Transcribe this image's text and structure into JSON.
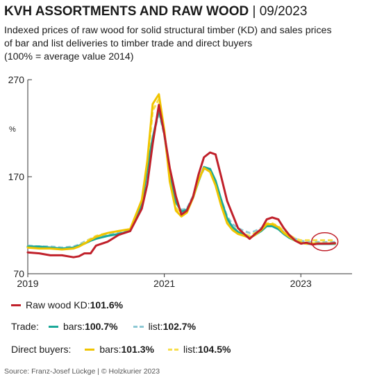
{
  "title": {
    "main": "KVH ASSORTMENTS AND RAW WOOD",
    "separator": " | ",
    "date": "09/2023"
  },
  "subtitle": {
    "line1": "Indexed prices of raw wood for solid structural timber (KD) and sales prices",
    "line2": "of bar and list deliveries to timber trade and direct buyers",
    "line3": "(100% = average value 2014)"
  },
  "legend": {
    "raw": {
      "label": "Raw wood KD: ",
      "value": "101.6%"
    },
    "trade": {
      "label": "Trade:",
      "bars_label": "bars: ",
      "bars_value": "100.7%",
      "list_label": "list: ",
      "list_value": "102.7%"
    },
    "direct": {
      "label": "Direct buyers:",
      "bars_label": "bars: ",
      "bars_value": "101.3%",
      "list_label": "list: ",
      "list_value": "104.5%"
    }
  },
  "source": "Source: Franz-Josef Lückge | © Holzkurier 2023",
  "chart_data": {
    "type": "line",
    "ylabel": "%",
    "ylim": [
      70,
      270
    ],
    "yticks": [
      70,
      170,
      270
    ],
    "xlim": [
      2019,
      2023.75
    ],
    "xticks": [
      {
        "value": 2019,
        "label": "2019"
      },
      {
        "value": 2021,
        "label": "2021"
      },
      {
        "value": 2023,
        "label": "2023"
      }
    ],
    "grid": false,
    "highlight_circle": {
      "x": 2023.35,
      "y": 103
    },
    "series": [
      {
        "name": "Raw wood KD",
        "color": "#c0202a",
        "style": "solid",
        "x": [
          2019.0,
          2019.17,
          2019.33,
          2019.5,
          2019.67,
          2019.75,
          2019.83,
          2019.92,
          2020.0,
          2020.17,
          2020.33,
          2020.5,
          2020.67,
          2020.75,
          2020.83,
          2020.92,
          2021.0,
          2021.08,
          2021.17,
          2021.25,
          2021.33,
          2021.42,
          2021.5,
          2021.58,
          2021.67,
          2021.75,
          2021.83,
          2021.92,
          2022.0,
          2022.08,
          2022.17,
          2022.25,
          2022.33,
          2022.42,
          2022.5,
          2022.58,
          2022.67,
          2022.75,
          2022.83,
          2022.92,
          2023.0,
          2023.08,
          2023.17,
          2023.25,
          2023.33,
          2023.42,
          2023.5
        ],
        "y": [
          92,
          91,
          89,
          89,
          87,
          88,
          91,
          91,
          99,
          103,
          110,
          114,
          137,
          162,
          204,
          244,
          214,
          179,
          150,
          131,
          135,
          149,
          172,
          190,
          195,
          193,
          171,
          145,
          131,
          117,
          111,
          106,
          111,
          116,
          126,
          128,
          126,
          117,
          110,
          104,
          101,
          102,
          100,
          101,
          101,
          101,
          101.6
        ]
      },
      {
        "name": "Trade bars",
        "color": "#1aa898",
        "style": "solid",
        "x": [
          2019.0,
          2019.17,
          2019.33,
          2019.5,
          2019.67,
          2019.75,
          2019.83,
          2019.92,
          2020.0,
          2020.17,
          2020.33,
          2020.5,
          2020.67,
          2020.75,
          2020.83,
          2020.92,
          2021.0,
          2021.08,
          2021.17,
          2021.25,
          2021.33,
          2021.42,
          2021.5,
          2021.58,
          2021.67,
          2021.75,
          2021.83,
          2021.92,
          2022.0,
          2022.08,
          2022.17,
          2022.25,
          2022.33,
          2022.42,
          2022.5,
          2022.58,
          2022.67,
          2022.75,
          2022.83,
          2022.92,
          2023.0,
          2023.08,
          2023.17,
          2023.25,
          2023.33,
          2023.42,
          2023.5
        ],
        "y": [
          98,
          98,
          97,
          96,
          97,
          99,
          101,
          104,
          106,
          109,
          111,
          114,
          141,
          178,
          210,
          239,
          215,
          173,
          144,
          134,
          136,
          148,
          165,
          180,
          178,
          166,
          147,
          127,
          118,
          113,
          110,
          107,
          110,
          114,
          119,
          119,
          116,
          111,
          107,
          104,
          102,
          101,
          100.7,
          100.7,
          100.7,
          100.7,
          100.7
        ]
      },
      {
        "name": "Trade list",
        "color": "#8cc8d4",
        "style": "dash",
        "x": [
          2019.0,
          2019.17,
          2019.33,
          2019.5,
          2019.67,
          2019.75,
          2019.83,
          2019.92,
          2020.0,
          2020.17,
          2020.33,
          2020.5,
          2020.67,
          2020.75,
          2020.83,
          2020.92,
          2021.0,
          2021.08,
          2021.17,
          2021.25,
          2021.33,
          2021.42,
          2021.5,
          2021.58,
          2021.67,
          2021.75,
          2021.83,
          2021.92,
          2022.0,
          2022.08,
          2022.17,
          2022.25,
          2022.33,
          2022.42,
          2022.5,
          2022.58,
          2022.67,
          2022.75,
          2022.83,
          2022.92,
          2023.0,
          2023.08,
          2023.17,
          2023.25,
          2023.33,
          2023.42,
          2023.5
        ],
        "y": [
          99,
          98,
          98,
          97,
          98,
          100,
          103,
          106,
          108,
          110,
          112,
          115,
          142,
          176,
          208,
          237,
          213,
          172,
          145,
          136,
          137,
          150,
          166,
          178,
          176,
          164,
          147,
          129,
          121,
          117,
          114,
          112,
          114,
          117,
          121,
          121,
          118,
          113,
          110,
          106,
          104,
          103,
          102.7,
          102.7,
          102.7,
          102.7,
          102.7
        ]
      },
      {
        "name": "Direct buyers bars",
        "color": "#f0c400",
        "style": "solid",
        "x": [
          2019.0,
          2019.17,
          2019.33,
          2019.5,
          2019.67,
          2019.75,
          2019.83,
          2019.92,
          2020.0,
          2020.17,
          2020.33,
          2020.5,
          2020.67,
          2020.75,
          2020.83,
          2020.92,
          2021.0,
          2021.08,
          2021.17,
          2021.25,
          2021.33,
          2021.42,
          2021.5,
          2021.58,
          2021.67,
          2021.75,
          2021.83,
          2021.92,
          2022.0,
          2022.08,
          2022.17,
          2022.25,
          2022.33,
          2022.42,
          2022.5,
          2022.58,
          2022.67,
          2022.75,
          2022.83,
          2022.92,
          2023.0,
          2023.08,
          2023.17,
          2023.25,
          2023.33,
          2023.42,
          2023.5
        ],
        "y": [
          97,
          96,
          96,
          95,
          96,
          98,
          101,
          105,
          108,
          112,
          114,
          116,
          146,
          186,
          245,
          255,
          218,
          165,
          135,
          129,
          133,
          148,
          166,
          179,
          175,
          161,
          141,
          122,
          115,
          111,
          109,
          107,
          110,
          115,
          121,
          121,
          118,
          112,
          108,
          104,
          102,
          101,
          101.3,
          101.3,
          101.3,
          101.3,
          101.3
        ]
      },
      {
        "name": "Direct buyers list",
        "color": "#f7de4a",
        "style": "dash",
        "x": [
          2019.0,
          2019.17,
          2019.33,
          2019.5,
          2019.67,
          2019.75,
          2019.83,
          2019.92,
          2020.0,
          2020.17,
          2020.33,
          2020.5,
          2020.67,
          2020.75,
          2020.83,
          2020.92,
          2021.0,
          2021.08,
          2021.17,
          2021.25,
          2021.33,
          2021.42,
          2021.5,
          2021.58,
          2021.67,
          2021.75,
          2021.83,
          2021.92,
          2022.0,
          2022.08,
          2022.17,
          2022.25,
          2022.33,
          2022.42,
          2022.5,
          2022.58,
          2022.67,
          2022.75,
          2022.83,
          2022.92,
          2023.0,
          2023.08,
          2023.17,
          2023.25,
          2023.33,
          2023.42,
          2023.5
        ],
        "y": [
          98,
          97,
          97,
          96,
          97,
          99,
          102,
          106,
          109,
          112,
          114,
          116,
          144,
          182,
          238,
          250,
          215,
          168,
          138,
          131,
          134,
          149,
          167,
          179,
          176,
          163,
          144,
          125,
          118,
          114,
          111,
          109,
          112,
          116,
          122,
          122,
          119,
          114,
          110,
          106,
          104.5,
          104.5,
          104.5,
          104.5,
          104.5,
          104.5,
          104.5
        ]
      }
    ]
  }
}
